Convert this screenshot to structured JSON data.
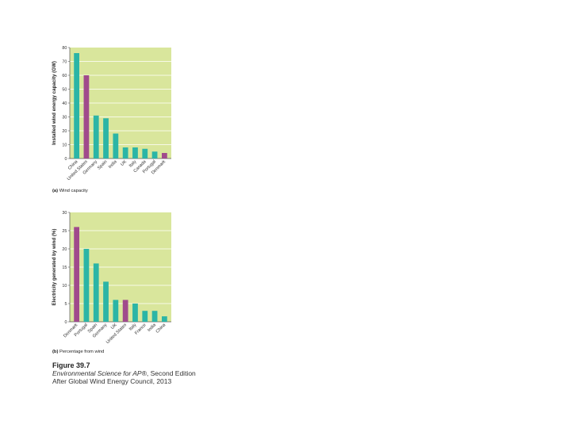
{
  "chart_data": [
    {
      "type": "bar",
      "panel_letter": "(a)",
      "caption": "Wind capacity",
      "ylabel": "Installed wind energy capacity (GW)",
      "xlabel": "",
      "ylim": [
        0,
        80
      ],
      "yticks": [
        "0",
        "10",
        "20",
        "30",
        "40",
        "50",
        "60",
        "70",
        "80"
      ],
      "categories": [
        "China",
        "United States",
        "Germany",
        "Spain",
        "India",
        "UK",
        "Italy",
        "Canada",
        "Portugal",
        "Denmark"
      ],
      "values": [
        76,
        60,
        31,
        29,
        18,
        8,
        8,
        7,
        5,
        4
      ],
      "highlight": [
        "United States",
        "Denmark"
      ],
      "grid": true,
      "colors": {
        "bar": "#2bb5a6",
        "highlight": "#a04a8c",
        "plot_bg": "#d9e69c",
        "grid": "#ffffff"
      }
    },
    {
      "type": "bar",
      "panel_letter": "(b)",
      "caption": "Percentage from wind",
      "ylabel": "Electricity generated by wind (%)",
      "xlabel": "",
      "ylim": [
        0,
        30
      ],
      "yticks": [
        "0",
        "5",
        "10",
        "15",
        "20",
        "25",
        "30"
      ],
      "categories": [
        "Denmark",
        "Portugal",
        "Spain",
        "Germany",
        "UK",
        "United States",
        "Italy",
        "France",
        "India",
        "China"
      ],
      "values": [
        26,
        20,
        16,
        11,
        6,
        6,
        5,
        3,
        3,
        1.5
      ],
      "highlight": [
        "Denmark",
        "United States"
      ],
      "grid": true,
      "colors": {
        "bar": "#2bb5a6",
        "highlight": "#a04a8c",
        "plot_bg": "#d9e69c",
        "grid": "#ffffff"
      }
    }
  ],
  "figure": {
    "title": "Figure 39.7",
    "source_italic": "Environmental Science for AP®",
    "source_rest": ", Second Edition",
    "credit": "After Global Wind Energy Council, 2013"
  }
}
